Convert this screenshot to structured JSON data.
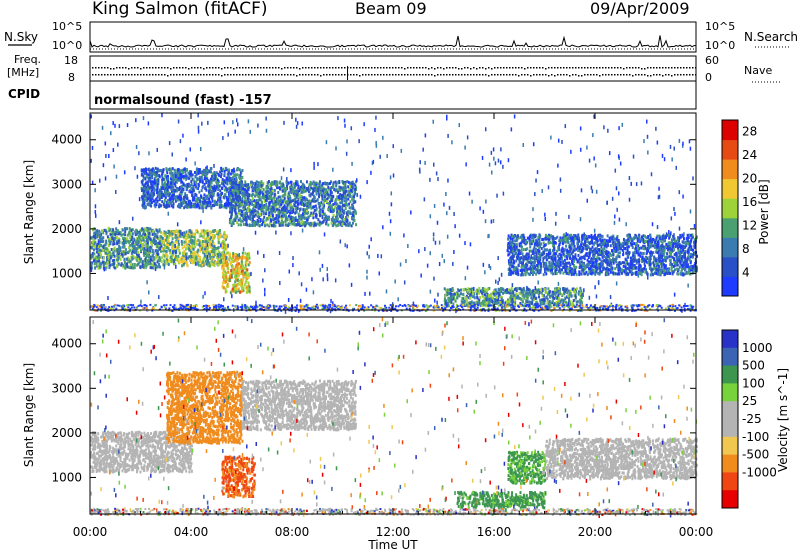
{
  "header": {
    "station": "King Salmon (fitACF)",
    "beam": "Beam 09",
    "date": "09/Apr/2009"
  },
  "top_panels": {
    "nsky_label": "N.Sky",
    "nsearch_label": "N.Search",
    "freq_label": "Freq.",
    "freq_unit": "[MHz]",
    "nave_label": "Nave",
    "cpid_label": "CPID",
    "cpid_text": "normalsound (fast) -157",
    "noise_ticks": [
      "10^5",
      "10^0"
    ],
    "freq_ticks": [
      "18",
      "8"
    ],
    "nave_ticks": [
      "60",
      "0"
    ]
  },
  "colorbars": {
    "power_label": "Power [dB]",
    "velocity_label": "Velocity [m s^-1]"
  },
  "colors": {
    "power": [
      "#1e3cff",
      "#2a50c8",
      "#3a7cb0",
      "#4aa070",
      "#9ed23a",
      "#f0c832",
      "#f08c1e",
      "#e64b14",
      "#dc0000"
    ],
    "velocity": [
      "#e60000",
      "#f04614",
      "#f08c1e",
      "#f0c850",
      "#b4b4b4",
      "#b4b4b4",
      "#78d23c",
      "#3c9650",
      "#3c64b4",
      "#2832c8"
    ],
    "ground": "#b4b4b4"
  },
  "chart_data": [
    {
      "type": "heatmap",
      "title": "",
      "xlabel": "Time UT",
      "ylabel": "Slant Range [km]",
      "xlim": [
        "00:00",
        "24:00"
      ],
      "ylim": [
        180,
        4600
      ],
      "x_ticks": [
        "00:00",
        "04:00",
        "08:00",
        "12:00",
        "16:00",
        "20:00",
        "00:00"
      ],
      "y_ticks": [
        1000,
        2000,
        3000,
        4000
      ],
      "colorbar": {
        "label": "Power [dB]",
        "ticks": [
          4,
          8,
          12,
          16,
          20,
          24,
          28
        ],
        "range": [
          0,
          30
        ]
      },
      "regions": [
        {
          "t": [
            0.0,
            2.8
          ],
          "r": [
            1150,
            2050
          ],
          "value": 10
        },
        {
          "t": [
            2.8,
            5.4
          ],
          "r": [
            1200,
            2000
          ],
          "value": 14
        },
        {
          "t": [
            2.0,
            6.0
          ],
          "r": [
            2500,
            3400
          ],
          "value": 6
        },
        {
          "t": [
            5.5,
            10.5
          ],
          "r": [
            2100,
            3100
          ],
          "value": 8
        },
        {
          "t": [
            5.2,
            6.3
          ],
          "r": [
            600,
            1500
          ],
          "value": 18
        },
        {
          "t": [
            16.5,
            24.0
          ],
          "r": [
            1000,
            1900
          ],
          "value": 6
        },
        {
          "t": [
            14.0,
            19.5
          ],
          "r": [
            300,
            700
          ],
          "value": 10
        }
      ]
    },
    {
      "type": "heatmap",
      "title": "",
      "xlabel": "Time UT",
      "ylabel": "Slant Range [km]",
      "xlim": [
        "00:00",
        "24:00"
      ],
      "ylim": [
        180,
        4600
      ],
      "x_ticks": [
        "00:00",
        "04:00",
        "08:00",
        "12:00",
        "16:00",
        "20:00",
        "00:00"
      ],
      "y_ticks": [
        1000,
        2000,
        3000,
        4000
      ],
      "colorbar": {
        "label": "Velocity [m s^-1]",
        "ticks": [
          "1000",
          "500",
          "100",
          "25",
          "-25",
          "-100",
          "-500",
          "-1000"
        ]
      },
      "regions": [
        {
          "t": [
            0.0,
            4.0
          ],
          "r": [
            1150,
            2050
          ],
          "value": 0,
          "ground_scatter": true
        },
        {
          "t": [
            3.0,
            6.0
          ],
          "r": [
            1800,
            3400
          ],
          "value": -300
        },
        {
          "t": [
            5.2,
            6.5
          ],
          "r": [
            600,
            1500
          ],
          "value": -600
        },
        {
          "t": [
            6.0,
            10.5
          ],
          "r": [
            2100,
            3200
          ],
          "value": 0,
          "ground_scatter": true
        },
        {
          "t": [
            16.5,
            18.0
          ],
          "r": [
            900,
            1600
          ],
          "value": 120
        },
        {
          "t": [
            18.0,
            24.0
          ],
          "r": [
            1000,
            1900
          ],
          "value": 0,
          "ground_scatter": true
        },
        {
          "t": [
            14.5,
            18.0
          ],
          "r": [
            350,
            700
          ],
          "value": 150
        }
      ]
    }
  ]
}
